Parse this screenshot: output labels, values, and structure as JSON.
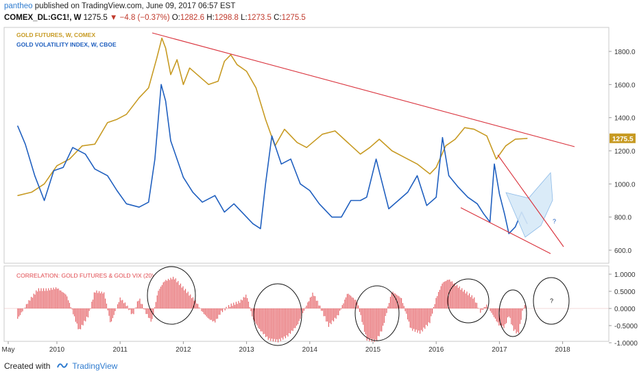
{
  "header": {
    "user": "pantheo",
    "published": "published on TradingView.com, June 09, 2017 06:57 EST",
    "symbol": "COMEX_DL:GC1!, W",
    "last": "1275.5",
    "change": "−4.8 (−0.37%)",
    "open_label": "O:",
    "open": "1282.6",
    "high_label": "H:",
    "high": "1298.8",
    "low_label": "L:",
    "low": "1273.5",
    "close_label": "C:",
    "close": "1275.5"
  },
  "footer": {
    "created_with": "Created with",
    "brand": "TradingView"
  },
  "colors": {
    "gold": "#c79a22",
    "vix": "#1f5fbf",
    "trend": "#d9303a",
    "corr": "#e0474c",
    "wedge": "#d6e9f8"
  },
  "chart_data": [
    {
      "type": "line",
      "legend": [
        "GOLD FUTURES, W, COMEX",
        "GOLD VOLATILITY INDEX, W, CBOE"
      ],
      "x_ticks": [
        "May",
        "2010",
        "2011",
        "2012",
        "2013",
        "2014",
        "2015",
        "2016",
        "2017",
        "2018"
      ],
      "y_ticks": [
        "1800.0",
        "1600.0",
        "1400.0",
        "1200.0",
        "1000.0",
        "800.0",
        "600.0"
      ],
      "ylim": [
        560,
        1920
      ],
      "last_price_label": "1275.5",
      "annotations": [
        "?"
      ],
      "series": [
        {
          "name": "GOLD FUTURES, W, COMEX",
          "x": [
            2009.38,
            2009.6,
            2009.8,
            2010.0,
            2010.2,
            2010.4,
            2010.6,
            2010.8,
            2010.95,
            2011.1,
            2011.3,
            2011.45,
            2011.58,
            2011.66,
            2011.72,
            2011.8,
            2011.9,
            2012.0,
            2012.1,
            2012.25,
            2012.4,
            2012.55,
            2012.65,
            2012.75,
            2012.85,
            2013.0,
            2013.15,
            2013.3,
            2013.45,
            2013.6,
            2013.8,
            2013.95,
            2014.2,
            2014.4,
            2014.6,
            2014.8,
            2014.95,
            2015.1,
            2015.3,
            2015.5,
            2015.7,
            2015.9,
            2016.0,
            2016.15,
            2016.3,
            2016.45,
            2016.6,
            2016.8,
            2016.95,
            2017.1,
            2017.25,
            2017.44
          ],
          "values": [
            930,
            950,
            1000,
            1110,
            1150,
            1230,
            1240,
            1370,
            1390,
            1420,
            1520,
            1580,
            1760,
            1880,
            1820,
            1660,
            1750,
            1600,
            1700,
            1650,
            1600,
            1620,
            1740,
            1780,
            1720,
            1680,
            1580,
            1390,
            1230,
            1330,
            1250,
            1220,
            1300,
            1320,
            1250,
            1180,
            1220,
            1270,
            1200,
            1160,
            1120,
            1060,
            1100,
            1230,
            1270,
            1340,
            1330,
            1290,
            1150,
            1230,
            1270,
            1275
          ]
        },
        {
          "name": "GOLD VOLATILITY INDEX, W, CBOE",
          "x": [
            2009.38,
            2009.5,
            2009.65,
            2009.8,
            2009.95,
            2010.1,
            2010.25,
            2010.45,
            2010.6,
            2010.8,
            2010.95,
            2011.1,
            2011.3,
            2011.45,
            2011.55,
            2011.65,
            2011.72,
            2011.8,
            2011.9,
            2012.0,
            2012.15,
            2012.3,
            2012.5,
            2012.65,
            2012.8,
            2012.95,
            2013.1,
            2013.22,
            2013.3,
            2013.4,
            2013.55,
            2013.7,
            2013.85,
            2014.0,
            2014.15,
            2014.35,
            2014.5,
            2014.65,
            2014.8,
            2014.9,
            2015.05,
            2015.25,
            2015.4,
            2015.55,
            2015.7,
            2015.85,
            2016.0,
            2016.1,
            2016.2,
            2016.35,
            2016.5,
            2016.65,
            2016.75,
            2016.85,
            2016.92,
            2017.0,
            2017.08,
            2017.15,
            2017.25,
            2017.35,
            2017.44
          ],
          "values": [
            1350,
            1240,
            1050,
            900,
            1080,
            1100,
            1220,
            1180,
            1090,
            1050,
            960,
            880,
            860,
            890,
            1150,
            1600,
            1500,
            1260,
            1150,
            1040,
            950,
            890,
            930,
            830,
            880,
            820,
            760,
            730,
            1000,
            1290,
            1120,
            1150,
            1000,
            960,
            880,
            800,
            800,
            900,
            900,
            920,
            1150,
            850,
            900,
            950,
            1050,
            870,
            920,
            1280,
            1050,
            980,
            920,
            880,
            820,
            770,
            1120,
            940,
            820,
            700,
            740,
            830,
            760
          ]
        }
      ]
    },
    {
      "type": "bar",
      "title": "CORRELATION: GOLD FUTURES & GOLD VIX (20)",
      "y_ticks": [
        "1.0000",
        "0.5000",
        "0.0000",
        "-0.5000",
        "-1.0000"
      ],
      "ylim": [
        -1.1,
        1.1
      ],
      "annotations": [
        "?"
      ],
      "x": [
        2009.38,
        2009.55,
        2009.7,
        2009.85,
        2010.0,
        2010.15,
        2010.25,
        2010.35,
        2010.5,
        2010.6,
        2010.75,
        2010.85,
        2011.0,
        2011.1,
        2011.2,
        2011.3,
        2011.4,
        2011.5,
        2011.6,
        2011.7,
        2011.85,
        2012.0,
        2012.1,
        2012.2,
        2012.3,
        2012.4,
        2012.5,
        2012.6,
        2012.75,
        2012.9,
        2013.0,
        2013.1,
        2013.2,
        2013.35,
        2013.5,
        2013.65,
        2013.8,
        2013.95,
        2014.05,
        2014.15,
        2014.3,
        2014.45,
        2014.6,
        2014.75,
        2014.9,
        2015.05,
        2015.15,
        2015.3,
        2015.45,
        2015.6,
        2015.75,
        2015.9,
        2016.0,
        2016.1,
        2016.2,
        2016.3,
        2016.45,
        2016.6,
        2016.7,
        2016.8,
        2016.9,
        2017.0,
        2017.08,
        2017.15,
        2017.22,
        2017.3,
        2017.38,
        2017.44
      ],
      "values": [
        -0.3,
        0.2,
        0.55,
        0.55,
        0.6,
        0.4,
        -0.1,
        -0.65,
        -0.2,
        0.5,
        0.45,
        -0.45,
        0.3,
        0.1,
        -0.2,
        0.3,
        -0.1,
        -0.4,
        0.5,
        0.8,
        0.9,
        0.6,
        0.4,
        0.2,
        -0.1,
        -0.3,
        -0.4,
        -0.1,
        0.1,
        0.2,
        0.4,
        -0.3,
        -0.6,
        -0.9,
        -0.95,
        -0.8,
        -0.5,
        0.1,
        0.45,
        0.1,
        -0.5,
        -0.2,
        0.45,
        0.2,
        -0.9,
        -0.95,
        -0.6,
        0.5,
        0.3,
        -0.6,
        -0.7,
        -0.4,
        0.3,
        0.75,
        0.85,
        0.7,
        0.5,
        0.3,
        -0.1,
        0.1,
        -0.2,
        -0.5,
        -0.55,
        -0.2,
        -0.6,
        -0.75,
        0.05,
        0.1
      ]
    }
  ]
}
